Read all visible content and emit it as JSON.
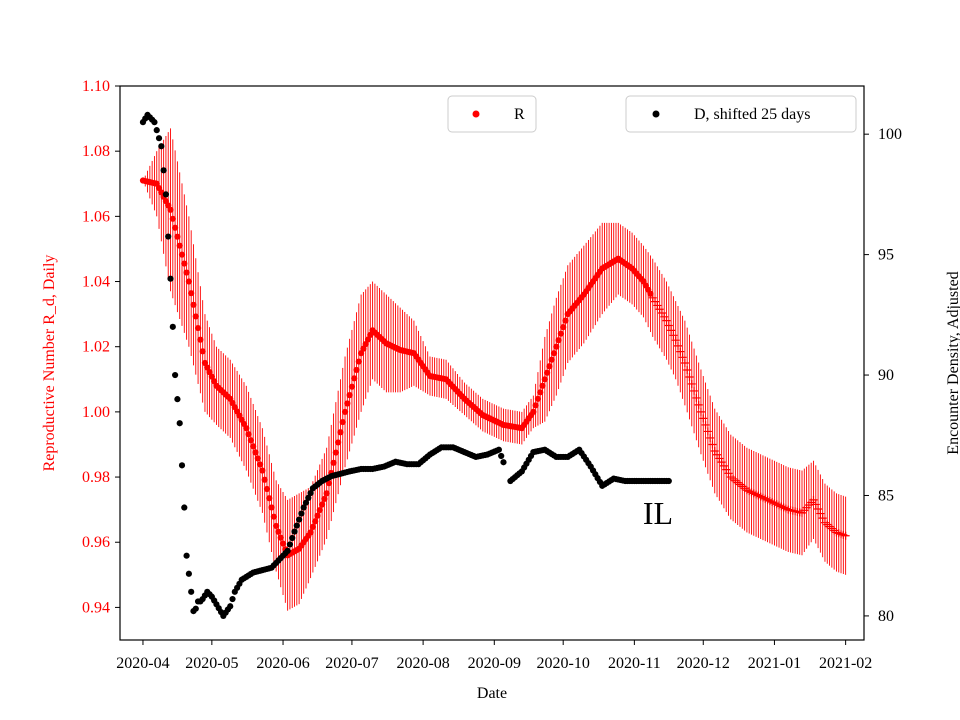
{
  "chart_data": {
    "type": "scatter",
    "region_label": "IL",
    "xlabel": "Date",
    "ylabel_left": "Reproductive Number R_d, Daily",
    "ylabel_right": "Encounter Density, Adjusted",
    "x_tick_labels": [
      "2020-04",
      "2020-05",
      "2020-06",
      "2020-07",
      "2020-08",
      "2020-09",
      "2020-10",
      "2020-11",
      "2020-12",
      "2021-01",
      "2021-02"
    ],
    "x_range_days": [
      -10,
      314
    ],
    "y_left_range": [
      0.93,
      1.1
    ],
    "y_left_ticks": [
      "0.94",
      "0.96",
      "0.98",
      "1.00",
      "1.02",
      "1.04",
      "1.06",
      "1.08",
      "1.10"
    ],
    "y_right_range": [
      79,
      102
    ],
    "y_right_ticks": [
      "80",
      "85",
      "90",
      "95",
      "100"
    ],
    "legend": {
      "r_label": "R",
      "d_label": "D, shifted 25 days"
    },
    "colors": {
      "r": "#ff0000",
      "d": "#000000",
      "left_axis": "#ff0000"
    },
    "series": [
      {
        "name": "R",
        "axis": "left",
        "marker": "dot-then-plus",
        "error_bars": true,
        "anchors_day": [
          0,
          6,
          12,
          20,
          27,
          32,
          38,
          45,
          52,
          58,
          63,
          68,
          73,
          80,
          88,
          95,
          100,
          106,
          112,
          118,
          125,
          132,
          140,
          148,
          157,
          165,
          170,
          175,
          180,
          185,
          192,
          200,
          207,
          213,
          218,
          222,
          228,
          232,
          236,
          243,
          249,
          256,
          263,
          269,
          275,
          281,
          287,
          292,
          297,
          302,
          306
        ],
        "anchors_value": [
          1.071,
          1.07,
          1.062,
          1.04,
          1.015,
          1.008,
          1.004,
          0.995,
          0.982,
          0.965,
          0.956,
          0.958,
          0.963,
          0.975,
          1.0,
          1.018,
          1.025,
          1.021,
          1.019,
          1.018,
          1.011,
          1.01,
          1.004,
          0.999,
          0.996,
          0.995,
          1.0,
          1.01,
          1.02,
          1.03,
          1.036,
          1.044,
          1.047,
          1.044,
          1.04,
          1.035,
          1.028,
          1.022,
          1.015,
          1.0,
          0.988,
          0.98,
          0.976,
          0.974,
          0.972,
          0.97,
          0.969,
          0.973,
          0.966,
          0.963,
          0.962
        ],
        "error_half_width_anchors_value": [
          0.0,
          0.01,
          0.025,
          0.02,
          0.015,
          0.012,
          0.012,
          0.013,
          0.013,
          0.014,
          0.017,
          0.017,
          0.014,
          0.014,
          0.017,
          0.018,
          0.015,
          0.015,
          0.013,
          0.01,
          0.006,
          0.006,
          0.005,
          0.005,
          0.005,
          0.005,
          0.005,
          0.013,
          0.015,
          0.015,
          0.015,
          0.014,
          0.011,
          0.011,
          0.011,
          0.012,
          0.012,
          0.012,
          0.013,
          0.013,
          0.013,
          0.013,
          0.013,
          0.013,
          0.013,
          0.013,
          0.013,
          0.012,
          0.012,
          0.012,
          0.012
        ],
        "plus_marker_from_day": 222
      },
      {
        "name": "D, shifted 25 days",
        "axis": "right",
        "marker": "dot",
        "anchors_day": [
          0,
          2,
          5,
          8,
          10,
          12,
          14,
          16,
          18,
          19,
          21,
          22,
          23,
          24,
          25,
          26,
          28,
          30,
          35,
          38,
          40,
          43,
          48,
          52,
          56,
          60,
          63,
          66,
          70,
          74,
          78,
          82,
          86,
          90,
          95,
          100,
          105,
          110,
          115,
          120,
          125,
          130,
          135,
          140,
          145,
          150,
          155,
          160,
          165,
          170,
          175,
          180,
          185,
          190,
          195,
          200,
          205,
          210,
          215,
          220,
          225,
          229
        ],
        "anchors_value": [
          100.5,
          100.8,
          100.5,
          99.5,
          97.5,
          94.0,
          90.0,
          88.0,
          84.5,
          82.5,
          81.0,
          80.2,
          80.3,
          80.6,
          80.6,
          80.7,
          81.0,
          80.8,
          80.0,
          80.4,
          81.0,
          81.5,
          81.8,
          81.9,
          82.0,
          82.4,
          82.7,
          83.5,
          84.5,
          85.3,
          85.6,
          85.8,
          85.9,
          86.0,
          86.1,
          86.1,
          86.2,
          86.4,
          86.3,
          86.3,
          86.7,
          87.0,
          87.0,
          86.8,
          86.6,
          86.7,
          86.9,
          85.6,
          86.0,
          86.8,
          86.9,
          86.6,
          86.6,
          86.9,
          86.2,
          85.4,
          85.7,
          85.6,
          85.6,
          85.6,
          85.6,
          85.6
        ],
        "gap_days": [
          158,
          159
        ]
      }
    ]
  }
}
